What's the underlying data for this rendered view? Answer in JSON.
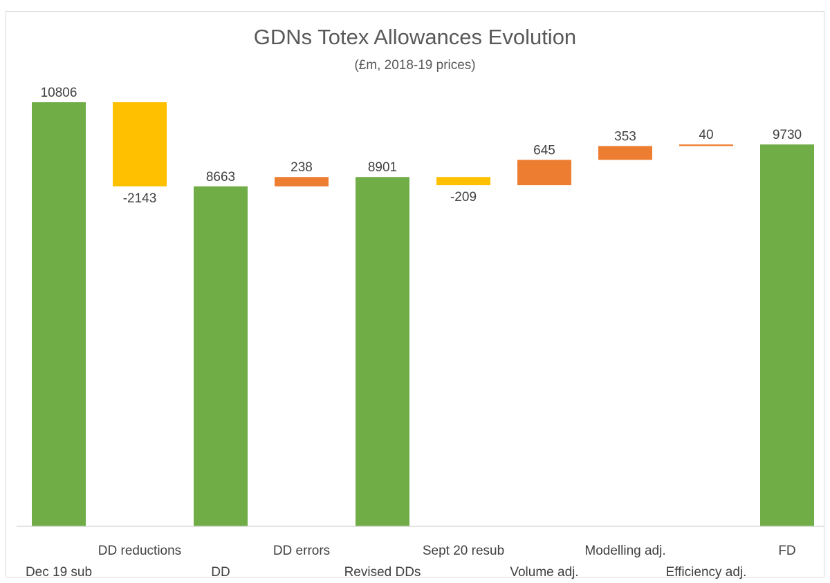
{
  "chart_data": {
    "type": "waterfall",
    "title": "GDNs Totex Allowances Evolution",
    "subtitle": "(£m, 2018-19 prices)",
    "ylim": [
      0,
      11000
    ],
    "grid": false,
    "legend": "none",
    "colors": {
      "total": "#70ad47",
      "decrease": "#ffc000",
      "increase": "#ed7d31"
    },
    "categories": [
      "Dec 19 sub",
      "DD reductions",
      "DD",
      "DD errors",
      "Revised DDs",
      "Sept 20 resub",
      "Volume adj.",
      "Modelling adj.",
      "Efficiency adj.",
      "FD"
    ],
    "values": [
      10806,
      -2143,
      8663,
      238,
      8901,
      -209,
      645,
      353,
      40,
      9730
    ],
    "bar_kind": [
      "total",
      "decrease",
      "total",
      "increase",
      "total",
      "decrease",
      "increase",
      "increase",
      "increase",
      "total"
    ]
  }
}
